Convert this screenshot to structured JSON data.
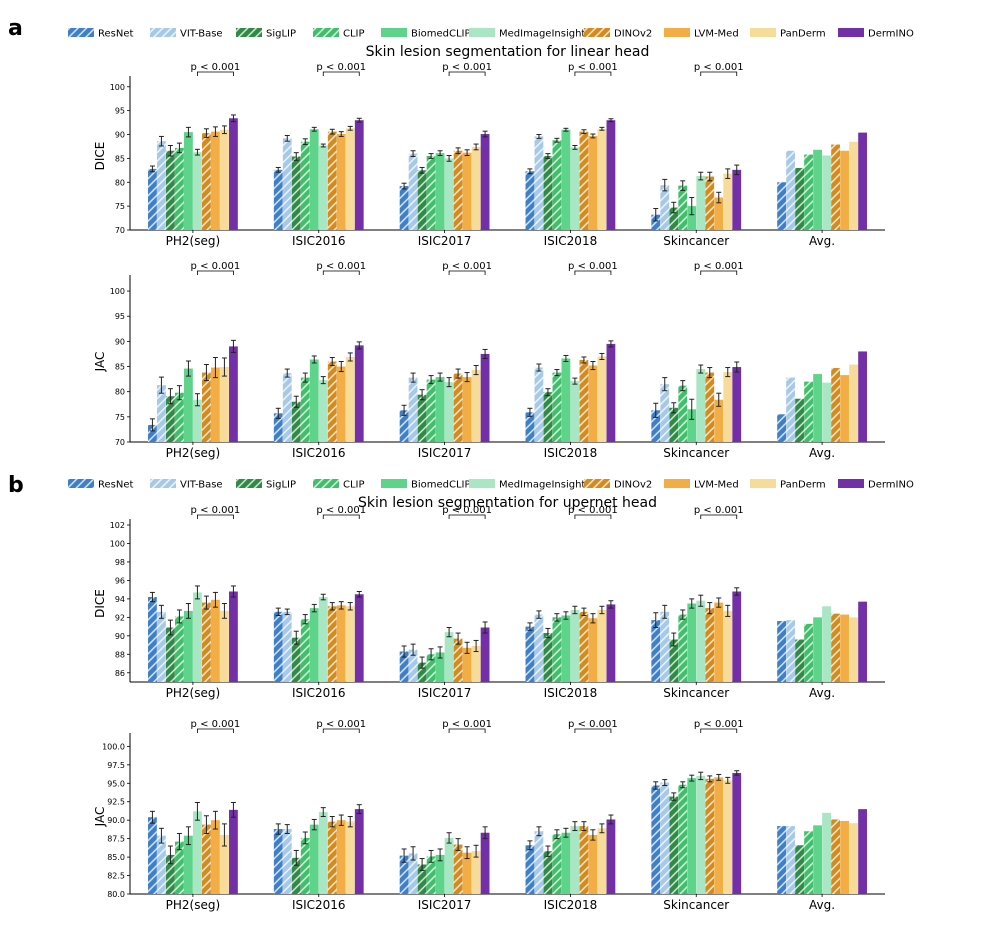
{
  "colors": {
    "ResNet": "#3d7fc9",
    "VIT-Base": "#a6c9e8",
    "SigLIP": "#2f8a46",
    "CLIP": "#3fbf6a",
    "BiomedCLIP": "#5dd48a",
    "MedImageInsight": "#a9e6c4",
    "DINOv2": "#d48a1d",
    "LVM-Med": "#f2ae44",
    "PanDerm": "#f6dc98",
    "DermINO": "#7330a6"
  },
  "hatched": [
    "ResNet",
    "VIT-Base",
    "SigLIP",
    "CLIP",
    "DINOv2"
  ],
  "legend": [
    "ResNet",
    "VIT-Base",
    "SigLIP",
    "CLIP",
    "BiomedCLIP",
    "MedImageInsight",
    "DINOv2",
    "LVM-Med",
    "PanDerm",
    "DermINO"
  ],
  "panel_labels": [
    "a",
    "b"
  ],
  "chart_data": [
    {
      "type": "bar",
      "panel": "a",
      "title": "Skin lesion segmentation for linear head",
      "ylabel": "DICE",
      "ylim": [
        70,
        101
      ],
      "yticks": [
        "70",
        "75",
        "80",
        "85",
        "90",
        "95",
        "100"
      ],
      "categories": [
        "PH2(seg)",
        "ISIC2016",
        "ISIC2017",
        "ISIC2018",
        "Skincancer",
        "Avg."
      ],
      "annotation": "p < 0.001",
      "annotated_categories": [
        "PH2(seg)",
        "ISIC2016",
        "ISIC2017",
        "ISIC2018",
        "Skincancer"
      ],
      "series": [
        {
          "name": "ResNet",
          "values": [
            82.8,
            82.6,
            79.2,
            82.3,
            73.2,
            80.0
          ],
          "errors": [
            0.6,
            0.5,
            0.6,
            0.5,
            1.3,
            null
          ]
        },
        {
          "name": "VIT-Base",
          "values": [
            88.6,
            89.2,
            86.0,
            89.6,
            79.4,
            86.6
          ],
          "errors": [
            1.0,
            0.6,
            0.6,
            0.4,
            1.2,
            null
          ]
        },
        {
          "name": "SigLIP",
          "values": [
            86.6,
            85.4,
            82.5,
            85.5,
            74.7,
            83.0
          ],
          "errors": [
            1.1,
            0.8,
            0.6,
            0.5,
            1.1,
            null
          ]
        },
        {
          "name": "CLIP",
          "values": [
            87.2,
            88.5,
            85.5,
            88.8,
            79.3,
            85.8
          ],
          "errors": [
            1.0,
            0.6,
            0.5,
            0.4,
            1.0,
            null
          ]
        },
        {
          "name": "BiomedCLIP",
          "values": [
            90.5,
            91.1,
            86.1,
            91.0,
            75.0,
            86.8
          ],
          "errors": [
            1.0,
            0.4,
            0.5,
            0.3,
            1.8,
            null
          ]
        },
        {
          "name": "MedImageInsight",
          "values": [
            86.3,
            87.7,
            85.0,
            87.3,
            81.3,
            85.6
          ],
          "errors": [
            0.6,
            0.3,
            0.6,
            0.4,
            0.8,
            null
          ]
        },
        {
          "name": "DINOv2",
          "values": [
            90.3,
            90.6,
            86.6,
            90.6,
            81.2,
            87.9
          ],
          "errors": [
            0.9,
            0.5,
            0.6,
            0.4,
            0.9,
            null
          ]
        },
        {
          "name": "LVM-Med",
          "values": [
            90.6,
            90.1,
            86.2,
            89.7,
            76.8,
            86.6
          ],
          "errors": [
            1.0,
            0.5,
            0.6,
            0.4,
            1.1,
            null
          ]
        },
        {
          "name": "PanDerm",
          "values": [
            91.0,
            91.3,
            87.4,
            91.2,
            81.8,
            88.5
          ],
          "errors": [
            0.8,
            0.4,
            0.6,
            0.3,
            1.0,
            null
          ]
        },
        {
          "name": "DermINO",
          "values": [
            93.4,
            93.0,
            90.1,
            93.0,
            82.6,
            90.4
          ],
          "errors": [
            0.7,
            0.4,
            0.6,
            0.3,
            1.0,
            null
          ]
        }
      ]
    },
    {
      "type": "bar",
      "panel": "a",
      "title": "",
      "ylabel": "JAC",
      "ylim": [
        70,
        102
      ],
      "yticks": [
        "70",
        "75",
        "80",
        "85",
        "90",
        "95",
        "100"
      ],
      "categories": [
        "PH2(seg)",
        "ISIC2016",
        "ISIC2017",
        "ISIC2018",
        "Skincancer",
        "Avg."
      ],
      "annotation": "p < 0.001",
      "annotated_categories": [
        "PH2(seg)",
        "ISIC2016",
        "ISIC2017",
        "ISIC2018",
        "Skincancer"
      ],
      "series": [
        {
          "name": "ResNet",
          "values": [
            73.4,
            75.7,
            76.3,
            75.9,
            76.3,
            75.5
          ],
          "errors": [
            1.2,
            1.0,
            1.0,
            0.8,
            1.4,
            null
          ]
        },
        {
          "name": "VIT-Base",
          "values": [
            81.3,
            83.7,
            82.8,
            84.8,
            81.5,
            82.8
          ],
          "errors": [
            1.6,
            0.8,
            0.9,
            0.7,
            1.3,
            null
          ]
        },
        {
          "name": "SigLIP",
          "values": [
            79.1,
            78.0,
            79.4,
            79.9,
            76.8,
            78.6
          ],
          "errors": [
            1.5,
            1.1,
            1.0,
            0.7,
            1.0,
            null
          ]
        },
        {
          "name": "CLIP",
          "values": [
            79.8,
            82.8,
            82.4,
            83.8,
            81.2,
            82.0
          ],
          "errors": [
            1.4,
            0.9,
            0.8,
            0.6,
            1.0,
            null
          ]
        },
        {
          "name": "BiomedCLIP",
          "values": [
            84.6,
            86.4,
            82.9,
            86.6,
            76.5,
            83.5
          ],
          "errors": [
            1.5,
            0.7,
            0.8,
            0.6,
            2.0,
            null
          ]
        },
        {
          "name": "MedImageInsight",
          "values": [
            78.4,
            82.3,
            81.9,
            82.1,
            84.5,
            81.8
          ],
          "errors": [
            1.2,
            0.7,
            0.9,
            0.6,
            0.8,
            null
          ]
        },
        {
          "name": "DINOv2",
          "values": [
            83.8,
            86.0,
            83.6,
            86.3,
            83.8,
            84.7
          ],
          "errors": [
            1.6,
            0.8,
            0.9,
            0.6,
            1.0,
            null
          ]
        },
        {
          "name": "LVM-Med",
          "values": [
            84.8,
            85.0,
            82.9,
            85.2,
            78.4,
            83.3
          ],
          "errors": [
            2.0,
            1.0,
            0.9,
            0.8,
            1.3,
            null
          ]
        },
        {
          "name": "PanDerm",
          "values": [
            84.9,
            86.9,
            84.3,
            87.0,
            83.9,
            85.4
          ],
          "errors": [
            1.8,
            0.8,
            0.9,
            0.6,
            0.9,
            null
          ]
        },
        {
          "name": "DermINO",
          "values": [
            89.0,
            89.2,
            87.5,
            89.5,
            84.9,
            88.0
          ],
          "errors": [
            1.2,
            0.7,
            0.9,
            0.6,
            1.0,
            null
          ]
        }
      ]
    },
    {
      "type": "bar",
      "panel": "b",
      "title": "Skin lesion segmentation for upernet head",
      "ylabel": "DICE",
      "ylim": [
        85,
        102
      ],
      "yticks": [
        "86",
        "88",
        "90",
        "92",
        "94",
        "96",
        "98",
        "100",
        "102"
      ],
      "categories": [
        "PH2(seg)",
        "ISIC2016",
        "ISIC2017",
        "ISIC2018",
        "Skincancer",
        "Avg."
      ],
      "annotation": "p < 0.001",
      "annotated_categories": [
        "PH2(seg)",
        "ISIC2016",
        "ISIC2017",
        "ISIC2018",
        "Skincancer"
      ],
      "series": [
        {
          "name": "ResNet",
          "values": [
            94.2,
            92.6,
            88.3,
            91.0,
            91.7,
            91.6
          ],
          "errors": [
            0.5,
            0.4,
            0.6,
            0.4,
            0.8,
            null
          ]
        },
        {
          "name": "VIT-Base",
          "values": [
            92.6,
            92.6,
            88.5,
            92.3,
            92.6,
            91.7
          ],
          "errors": [
            0.7,
            0.3,
            0.6,
            0.4,
            0.7,
            null
          ]
        },
        {
          "name": "SigLIP",
          "values": [
            90.9,
            89.8,
            87.1,
            90.3,
            89.6,
            89.6
          ],
          "errors": [
            0.8,
            0.7,
            0.6,
            0.5,
            0.7,
            null
          ]
        },
        {
          "name": "CLIP",
          "values": [
            92.1,
            91.8,
            88.0,
            92.0,
            92.3,
            91.3
          ],
          "errors": [
            0.7,
            0.5,
            0.6,
            0.4,
            0.5,
            null
          ]
        },
        {
          "name": "BiomedCLIP",
          "values": [
            92.7,
            93.0,
            88.2,
            92.2,
            93.5,
            92.0
          ],
          "errors": [
            0.8,
            0.4,
            0.6,
            0.4,
            0.5,
            null
          ]
        },
        {
          "name": "MedImageInsight",
          "values": [
            94.7,
            94.2,
            90.4,
            92.8,
            93.8,
            93.2
          ],
          "errors": [
            0.7,
            0.3,
            0.5,
            0.4,
            0.6,
            null
          ]
        },
        {
          "name": "DINOv2",
          "values": [
            93.6,
            93.2,
            89.7,
            92.6,
            93.0,
            92.4
          ],
          "errors": [
            0.7,
            0.4,
            0.6,
            0.4,
            0.6,
            null
          ]
        },
        {
          "name": "LVM-Med",
          "values": [
            93.9,
            93.3,
            88.7,
            91.9,
            93.6,
            92.3
          ],
          "errors": [
            0.8,
            0.4,
            0.6,
            0.5,
            0.5,
            null
          ]
        },
        {
          "name": "PanDerm",
          "values": [
            92.7,
            93.2,
            88.9,
            92.8,
            92.7,
            92.0
          ],
          "errors": [
            0.8,
            0.4,
            0.6,
            0.4,
            0.6,
            null
          ]
        },
        {
          "name": "DermINO",
          "values": [
            94.8,
            94.5,
            90.9,
            93.4,
            94.8,
            93.7
          ],
          "errors": [
            0.6,
            0.3,
            0.6,
            0.4,
            0.4,
            null
          ]
        }
      ]
    },
    {
      "type": "bar",
      "panel": "b",
      "title": "",
      "ylabel": "JAC",
      "ylim": [
        80,
        101
      ],
      "yticks": [
        "80.0",
        "82.5",
        "85.0",
        "87.5",
        "90.0",
        "92.5",
        "95.0",
        "97.5",
        "100.0"
      ],
      "categories": [
        "PH2(seg)",
        "ISIC2016",
        "ISIC2017",
        "ISIC2018",
        "Skincancer",
        "Avg."
      ],
      "annotation": "p < 0.001",
      "annotated_categories": [
        "PH2(seg)",
        "ISIC2016",
        "ISIC2017",
        "ISIC2018",
        "Skincancer"
      ],
      "series": [
        {
          "name": "ResNet",
          "values": [
            90.4,
            88.8,
            85.2,
            86.6,
            94.7,
            89.2
          ],
          "errors": [
            0.8,
            0.7,
            0.9,
            0.6,
            0.5,
            null
          ]
        },
        {
          "name": "VIT-Base",
          "values": [
            87.9,
            88.8,
            85.5,
            88.5,
            95.1,
            89.2
          ],
          "errors": [
            1.0,
            0.6,
            0.9,
            0.6,
            0.4,
            null
          ]
        },
        {
          "name": "SigLIP",
          "values": [
            85.3,
            84.9,
            84.0,
            85.8,
            93.2,
            86.6
          ],
          "errors": [
            1.2,
            1.0,
            0.8,
            0.7,
            0.5,
            null
          ]
        },
        {
          "name": "CLIP",
          "values": [
            87.1,
            87.6,
            85.1,
            88.1,
            94.8,
            88.5
          ],
          "errors": [
            1.1,
            0.8,
            0.8,
            0.6,
            0.4,
            null
          ]
        },
        {
          "name": "BiomedCLIP",
          "values": [
            87.9,
            89.4,
            85.3,
            88.3,
            95.7,
            89.3
          ],
          "errors": [
            1.2,
            0.7,
            0.8,
            0.6,
            0.4,
            null
          ]
        },
        {
          "name": "MedImageInsight",
          "values": [
            91.2,
            91.1,
            87.6,
            89.2,
            96.0,
            91.0
          ],
          "errors": [
            1.2,
            0.6,
            0.7,
            0.6,
            0.5,
            null
          ]
        },
        {
          "name": "DINOv2",
          "values": [
            89.4,
            89.8,
            86.7,
            89.2,
            95.6,
            90.1
          ],
          "errors": [
            1.2,
            0.7,
            0.8,
            0.6,
            0.4,
            null
          ]
        },
        {
          "name": "LVM-Med",
          "values": [
            90.0,
            90.0,
            85.6,
            88.0,
            95.8,
            89.9
          ],
          "errors": [
            1.2,
            0.7,
            0.8,
            0.7,
            0.4,
            null
          ]
        },
        {
          "name": "PanDerm",
          "values": [
            88.0,
            89.8,
            85.8,
            88.9,
            95.4,
            89.6
          ],
          "errors": [
            1.5,
            0.7,
            0.8,
            0.6,
            0.4,
            null
          ]
        },
        {
          "name": "DermINO",
          "values": [
            91.4,
            91.5,
            88.3,
            90.1,
            96.4,
            91.5
          ],
          "errors": [
            1.0,
            0.6,
            0.8,
            0.6,
            0.3,
            null
          ]
        }
      ]
    }
  ]
}
